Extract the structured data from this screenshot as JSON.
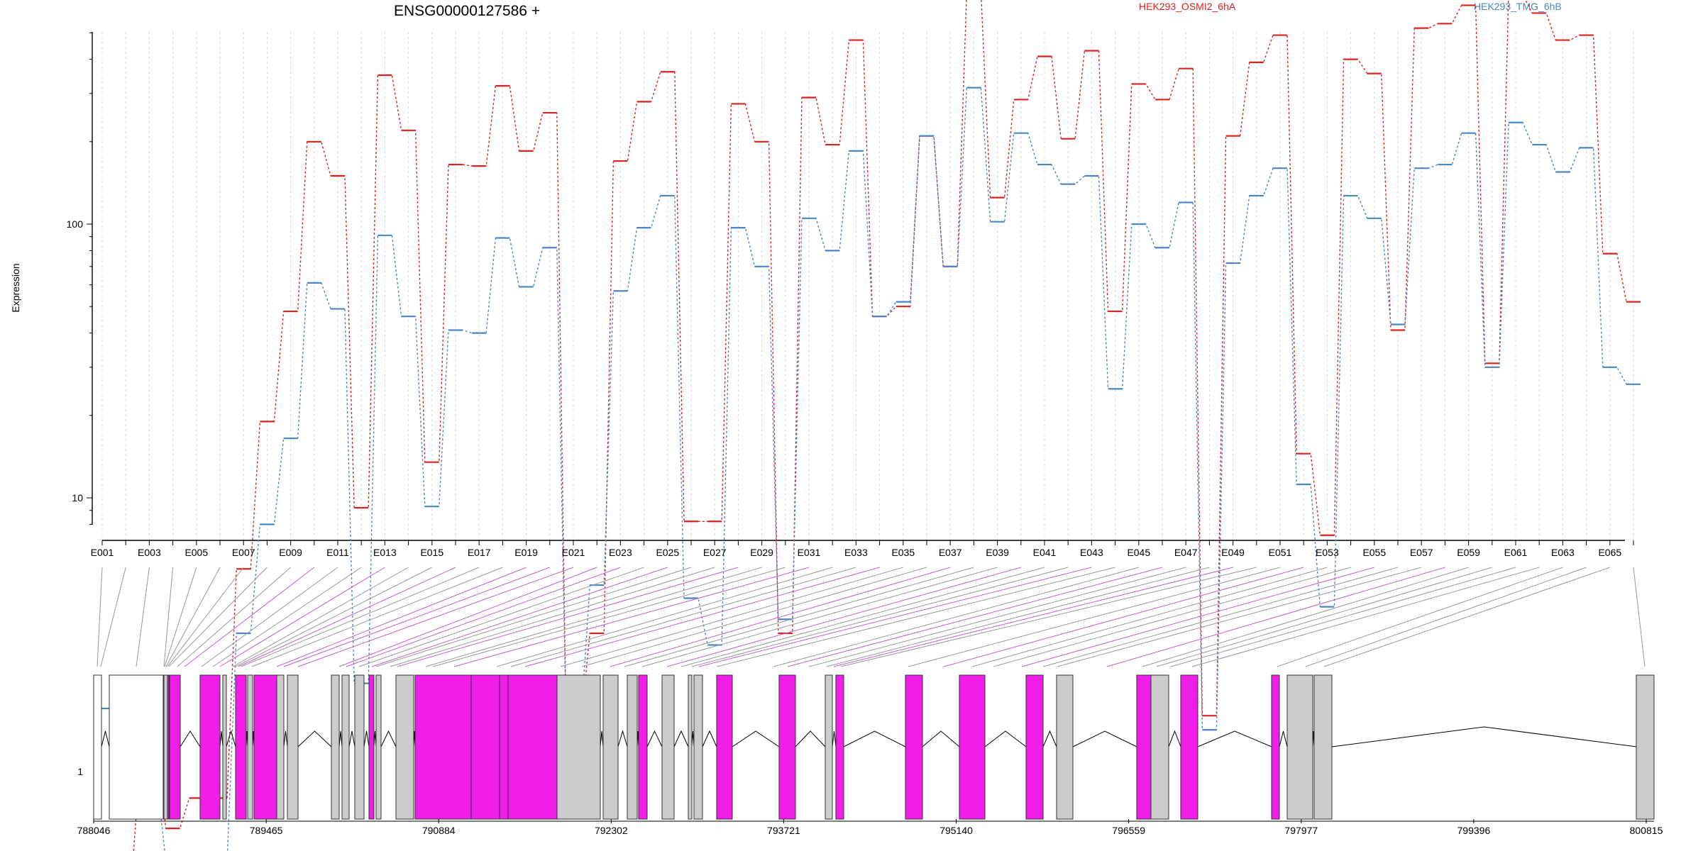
{
  "chart_data": {
    "type": "line",
    "title": "ENSG00000127586 +",
    "ylabel": "Expression",
    "y_scale": "log",
    "yticks": [
      "1",
      "10",
      "100"
    ],
    "exon_labels_shown": [
      "E001",
      "E003",
      "E005",
      "E007",
      "E009",
      "E011",
      "E013",
      "E015",
      "E017",
      "E019",
      "E021",
      "E023",
      "E025",
      "E027",
      "E029",
      "E031",
      "E033",
      "E035",
      "E037",
      "E039",
      "E041",
      "E043",
      "E045",
      "E047",
      "E049",
      "E051",
      "E053",
      "E055",
      "E057",
      "E059",
      "E061",
      "E063",
      "E065"
    ],
    "series": [
      {
        "name": "HEK293_OSMI2_6hA",
        "color": "#dd2222",
        "values": [
          0.47,
          0.47,
          1.35,
          0.62,
          0.8,
          0.8,
          5.5,
          19,
          48,
          200,
          150,
          9.2,
          350,
          220,
          13.5,
          165,
          163,
          320,
          185,
          255,
          1.4,
          3.2,
          170,
          280,
          360,
          8.2,
          8.2,
          275,
          200,
          3.2,
          290,
          195,
          470,
          46,
          50,
          210,
          70,
          710,
          125,
          285,
          410,
          205,
          430,
          48,
          325,
          285,
          370,
          1.6,
          210,
          390,
          490,
          14.5,
          7.3,
          400,
          355,
          41,
          520,
          540,
          630,
          31,
          690,
          590,
          470,
          490,
          78,
          52
        ]
      },
      {
        "name": "HEK293_TMG_6hB",
        "color": "#4a86c5",
        "values": [
          1.7,
          1.7,
          0.98,
          0.47,
          0.47,
          0.47,
          3.2,
          8,
          16.5,
          61,
          49,
          2.1,
          91,
          46,
          9.3,
          41,
          40,
          89,
          59,
          82,
          1.42,
          4.8,
          57,
          97,
          127,
          4.3,
          2.9,
          97,
          70,
          3.6,
          105,
          80,
          185,
          46,
          52,
          210,
          70,
          315,
          102,
          215,
          165,
          140,
          150,
          25,
          100,
          82,
          120,
          1.42,
          72,
          127,
          160,
          11.2,
          4,
          127,
          105,
          43,
          160,
          165,
          215,
          30,
          235,
          195,
          155,
          190,
          30,
          26
        ]
      }
    ],
    "gene_model": {
      "coordinate_ticks": [
        "788046",
        "789465",
        "790884",
        "792302",
        "793721",
        "795140",
        "796559",
        "797977",
        "799396",
        "800815"
      ]
    },
    "colors": {
      "highlight_exon": "#f01ee8",
      "plain_exon": "#cccccc",
      "grid": "#d6d6d6"
    }
  }
}
